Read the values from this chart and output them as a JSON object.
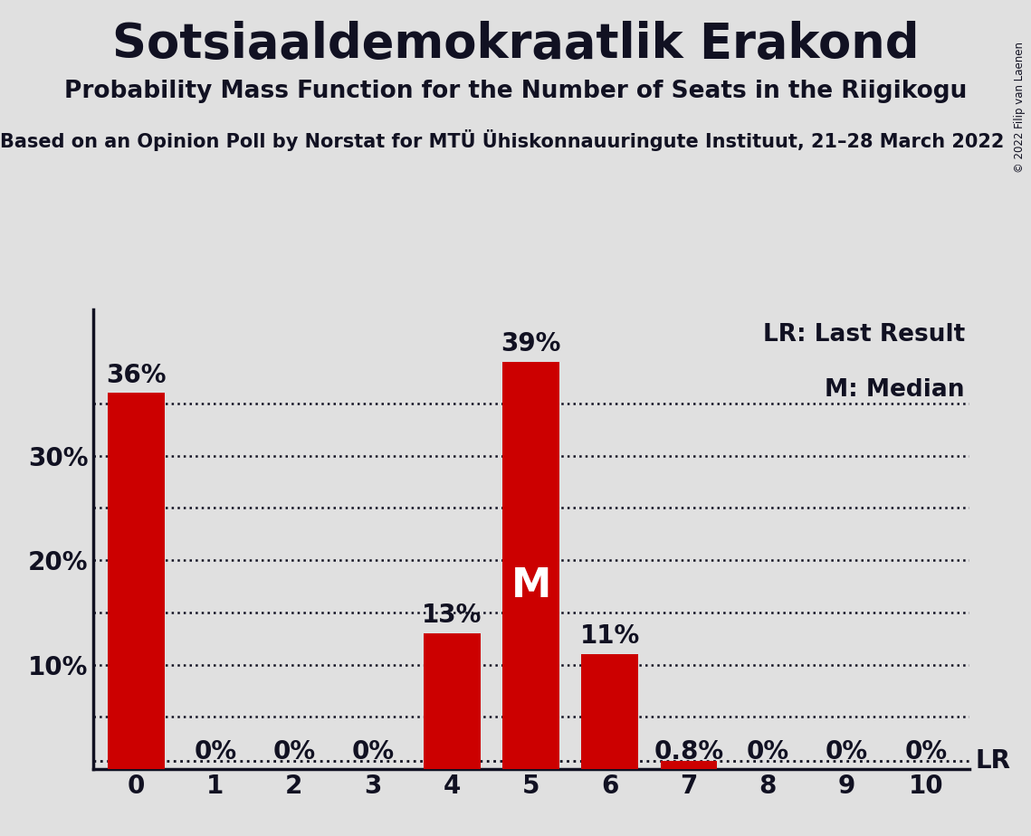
{
  "title": "Sotsiaaldemokraatlik Erakond",
  "subtitle": "Probability Mass Function for the Number of Seats in the Riigikogu",
  "source_line": "Based on an Opinion Poll by Norstat for MTÜ Ühiskonnauuringute Instituut, 21–28 March 2022",
  "copyright": "© 2022 Filip van Laenen",
  "categories": [
    0,
    1,
    2,
    3,
    4,
    5,
    6,
    7,
    8,
    9,
    10
  ],
  "values": [
    0.36,
    0.0,
    0.0,
    0.0,
    0.13,
    0.39,
    0.11,
    0.008,
    0.0,
    0.0,
    0.0
  ],
  "labels": [
    "36%",
    "0%",
    "0%",
    "0%",
    "13%",
    "39%",
    "11%",
    "0.8%",
    "0%",
    "0%",
    "0%"
  ],
  "bar_color": "#cc0000",
  "background_color": "#e0e0e0",
  "median_seat": 5,
  "lr_value": 0.008,
  "ylim": [
    0,
    0.44
  ],
  "yticks": [
    0.1,
    0.2,
    0.3
  ],
  "ytick_labels": [
    "10%",
    "20%",
    "30%"
  ],
  "legend_lr": "LR: Last Result",
  "legend_m": "M: Median",
  "title_fontsize": 38,
  "subtitle_fontsize": 19,
  "source_fontsize": 15,
  "label_fontsize": 20,
  "tick_fontsize": 20,
  "legend_fontsize": 19,
  "dark_color": "#111122"
}
